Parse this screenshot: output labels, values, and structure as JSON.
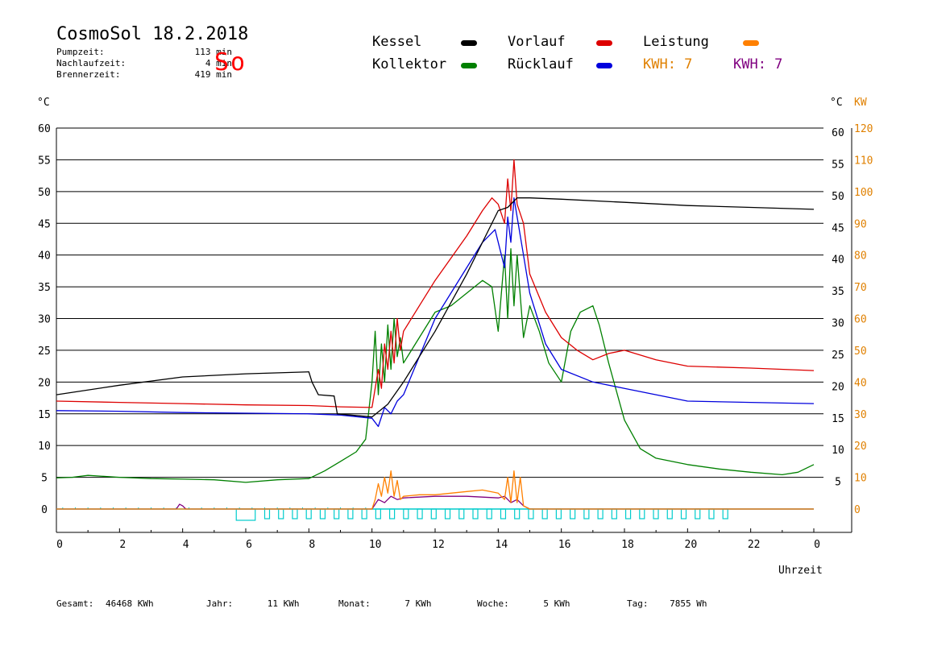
{
  "header": {
    "title": "CosmoSol 18.2.2018",
    "day": "So",
    "stats": [
      {
        "label": "Pumpzeit:",
        "value": "113 min"
      },
      {
        "label": "Nachlaufzeit:",
        "value": "4 min"
      },
      {
        "label": "Brennerzeit:",
        "value": "419 min"
      }
    ]
  },
  "legend": {
    "kessel": {
      "label": "Kessel",
      "color": "#000000"
    },
    "vorlauf": {
      "label": "Vorlauf",
      "color": "#dd0000"
    },
    "leistung": {
      "label": "Leistung",
      "color": "#ff8000"
    },
    "kollektor": {
      "label": "Kollektor",
      "color": "#008000"
    },
    "ruecklauf": {
      "label": "Rücklauf",
      "color": "#0000dd"
    },
    "kwh1": {
      "label": "KWH: 7",
      "color": "#e08000"
    },
    "kwh2": {
      "label": "KWH: 7",
      "color": "#800080"
    }
  },
  "axes": {
    "left_unit": "°C",
    "right_unit": "°C",
    "right_unit2": "KW",
    "xlabel": "Uhrzeit"
  },
  "footer": [
    {
      "label": "Gesamt:",
      "value": "46468 KWh"
    },
    {
      "label": "Jahr:",
      "value": "11 KWh"
    },
    {
      "label": "Monat:",
      "value": "7 KWh"
    },
    {
      "label": "Woche:",
      "value": "5 KWh"
    },
    {
      "label": "Tag:",
      "value": "7855 Wh"
    }
  ],
  "chart_data": {
    "type": "line",
    "x_ticks": [
      "0",
      "2",
      "4",
      "6",
      "8",
      "10",
      "12",
      "14",
      "16",
      "18",
      "20",
      "22",
      "0"
    ],
    "y_left_ticks": [
      "0",
      "5",
      "10",
      "15",
      "20",
      "25",
      "30",
      "35",
      "40",
      "45",
      "50",
      "55",
      "60"
    ],
    "y_right_ticks": [
      "5",
      "10",
      "15",
      "20",
      "25",
      "30",
      "35",
      "40",
      "45",
      "50",
      "55",
      "60"
    ],
    "y_kw_ticks": [
      "0",
      "10",
      "20",
      "30",
      "40",
      "50",
      "60",
      "70",
      "80",
      "90",
      "100",
      "110",
      "120"
    ],
    "xlim": [
      0,
      24
    ],
    "ylim": [
      0,
      60
    ],
    "kw_lim": [
      0,
      120
    ],
    "grid": true,
    "series": [
      {
        "name": "Kessel",
        "color": "#000000",
        "x": [
          0,
          2,
          4,
          6,
          8.0,
          8.1,
          8.3,
          8.8,
          8.9,
          10.0,
          10.5,
          11,
          12,
          13,
          14,
          14.3,
          14.6,
          15,
          16,
          18,
          20,
          22,
          24
        ],
        "y": [
          18,
          19.5,
          20.8,
          21.3,
          21.6,
          20,
          18,
          17.8,
          15,
          14.5,
          16.5,
          20,
          28,
          37,
          47,
          47.5,
          49,
          49,
          48.8,
          48.3,
          47.8,
          47.5,
          47.2
        ]
      },
      {
        "name": "Vorlauf",
        "color": "#dd0000",
        "x": [
          0,
          2,
          4,
          6,
          8,
          9,
          10.0,
          10.2,
          10.3,
          10.4,
          10.5,
          10.6,
          10.7,
          10.8,
          10.9,
          11.0,
          11.5,
          12,
          13,
          13.5,
          13.8,
          14.0,
          14.2,
          14.3,
          14.4,
          14.5,
          14.6,
          14.8,
          15,
          15.5,
          16,
          16.5,
          17,
          17.5,
          18,
          19,
          20,
          22,
          24
        ],
        "y": [
          17,
          16.8,
          16.6,
          16.4,
          16.3,
          16.1,
          16.0,
          22,
          19,
          26,
          22,
          28,
          23,
          30,
          25,
          28,
          32,
          36,
          43,
          47,
          49,
          48,
          45,
          52,
          47,
          55,
          48,
          45,
          37,
          31,
          27,
          25,
          23.5,
          24.5,
          25,
          23.5,
          22.5,
          22.2,
          21.8
        ]
      },
      {
        "name": "Rücklauf",
        "color": "#0000dd",
        "x": [
          0,
          2,
          4,
          6,
          8,
          9,
          10.0,
          10.2,
          10.4,
          10.6,
          10.8,
          11,
          11.5,
          12,
          13,
          13.5,
          13.9,
          14.1,
          14.2,
          14.3,
          14.4,
          14.5,
          14.6,
          14.8,
          15,
          15.5,
          16,
          17,
          18,
          19,
          20,
          22,
          24
        ],
        "y": [
          15.5,
          15.4,
          15.2,
          15.1,
          15.0,
          14.8,
          14.3,
          13,
          16,
          15,
          17,
          18,
          24,
          30,
          38,
          42,
          44,
          40,
          38,
          46,
          42,
          49,
          46,
          40,
          34,
          26,
          22,
          20,
          19,
          18,
          17,
          16.8,
          16.6
        ]
      },
      {
        "name": "Kollektor",
        "color": "#008000",
        "x": [
          0,
          0.5,
          1,
          2,
          3,
          4,
          5,
          6,
          7,
          8,
          8.5,
          9,
          9.5,
          9.8,
          10,
          10.1,
          10.2,
          10.3,
          10.4,
          10.5,
          10.6,
          10.7,
          10.8,
          10.9,
          11,
          11.5,
          12,
          12.5,
          13,
          13.5,
          13.8,
          14.0,
          14.2,
          14.3,
          14.4,
          14.5,
          14.6,
          14.8,
          15,
          15.3,
          15.6,
          16,
          16.3,
          16.6,
          17,
          17.2,
          17.5,
          18,
          18.5,
          19,
          20,
          21,
          22,
          23,
          23.5,
          24
        ],
        "y": [
          4.9,
          5.0,
          5.3,
          5.0,
          4.8,
          4.7,
          4.6,
          4.2,
          4.6,
          4.8,
          6,
          7.5,
          9,
          11,
          20,
          28,
          18,
          26,
          20,
          29,
          22,
          30,
          24,
          27,
          23,
          27,
          31,
          32,
          34,
          36,
          35,
          28,
          40,
          30,
          41,
          32,
          40,
          27,
          32,
          28,
          23,
          20,
          28,
          31,
          32,
          29,
          23,
          14,
          9.5,
          8,
          7,
          6.3,
          5.8,
          5.4,
          5.8,
          7
        ]
      },
      {
        "name": "Leistung",
        "color": "#ff8000",
        "x": [
          0,
          10.0,
          10.1,
          10.2,
          10.3,
          10.4,
          10.5,
          10.6,
          10.7,
          10.8,
          10.9,
          11,
          11.5,
          12,
          12.5,
          13,
          13.5,
          14,
          14.2,
          14.3,
          14.4,
          14.5,
          14.6,
          14.7,
          14.8,
          15,
          24
        ],
        "y": [
          0,
          0,
          3,
          8,
          4,
          10,
          5,
          12,
          4,
          9,
          3,
          4,
          4.5,
          4.5,
          5,
          5.5,
          6,
          5,
          3,
          10,
          2,
          12,
          2,
          10,
          1,
          0,
          0
        ]
      },
      {
        "name": "Leistung 2",
        "color": "#800080",
        "x": [
          0,
          3.8,
          3.9,
          4.0,
          4.1,
          10.0,
          10.2,
          10.4,
          10.6,
          10.8,
          11,
          12,
          13,
          14,
          14.2,
          14.4,
          14.6,
          14.8,
          15,
          24
        ],
        "y": [
          0,
          0,
          1.5,
          1,
          0,
          0,
          3,
          2,
          4,
          3,
          3.5,
          4,
          4,
          3.5,
          4,
          2,
          3,
          1,
          0,
          0
        ]
      }
    ]
  }
}
